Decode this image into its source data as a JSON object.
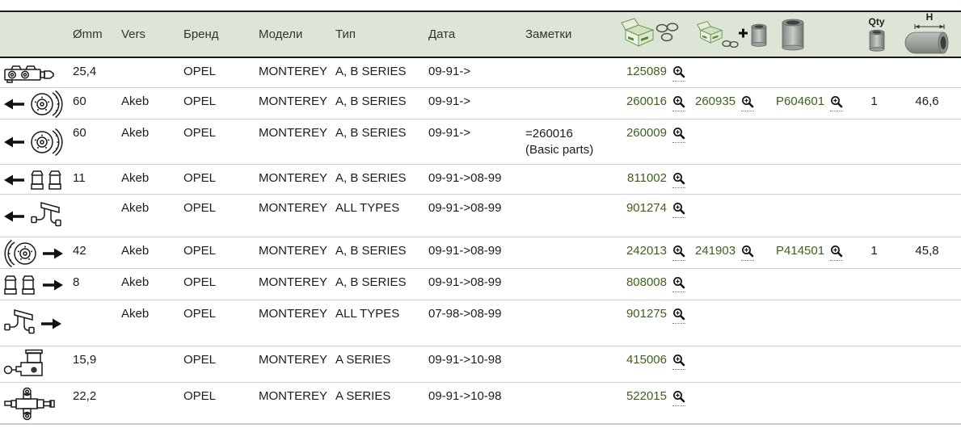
{
  "colors": {
    "header_bg": "#dde6d6",
    "header_border": "#1a1a1a",
    "row_separator": "#cdcdcd",
    "bottom_border": "#c9cad6",
    "part_link_green": "#3e611c",
    "body_text": "#1c1c1c"
  },
  "table": {
    "columns": [
      {
        "key": "icon",
        "label": "",
        "icon": null
      },
      {
        "key": "d",
        "label": "Ømm",
        "icon": null
      },
      {
        "key": "vers",
        "label": "Vers",
        "icon": null
      },
      {
        "key": "brand",
        "label": "Бренд",
        "icon": null
      },
      {
        "key": "model",
        "label": "Модели",
        "icon": null
      },
      {
        "key": "type",
        "label": "Тип",
        "icon": null
      },
      {
        "key": "date",
        "label": "Дата",
        "icon": null
      },
      {
        "key": "notes",
        "label": "Заметки",
        "icon": null
      },
      {
        "key": "p1",
        "label": "",
        "icon": "kit-rings"
      },
      {
        "key": "p2",
        "label": "",
        "icon": "kit-rings-piston"
      },
      {
        "key": "p3",
        "label": "",
        "icon": "piston"
      },
      {
        "key": "qty",
        "label": "Qty",
        "icon": "qty-piston"
      },
      {
        "key": "h",
        "label": "H",
        "icon": "h-piston"
      }
    ],
    "rows": [
      {
        "icon": "master-cylinder",
        "arrow": null,
        "d": "25,4",
        "vers": "",
        "brand": "OPEL",
        "model": "MONTEREY",
        "type": "A, B SERIES",
        "date": "09-91->",
        "notes": "",
        "p1": "125089",
        "p2": "",
        "p3": "",
        "qty": "",
        "h": ""
      },
      {
        "icon": "brake-disc",
        "arrow": "left",
        "d": "60",
        "vers": "Akeb",
        "brand": "OPEL",
        "model": "MONTEREY",
        "type": "A, B SERIES",
        "date": "09-91->",
        "notes": "",
        "p1": "260016",
        "p2": "260935",
        "p3": "P604601",
        "qty": "1",
        "h": "46,6"
      },
      {
        "icon": "brake-disc",
        "arrow": "left",
        "d": "60",
        "vers": "Akeb",
        "brand": "OPEL",
        "model": "MONTEREY",
        "type": "A, B SERIES",
        "date": "09-91->",
        "notes": "=260016 (Basic parts)",
        "p1": "260009",
        "p2": "",
        "p3": "",
        "qty": "",
        "h": ""
      },
      {
        "icon": "wheel-cylinder-cups",
        "arrow": "left",
        "d": "11",
        "vers": "Akeb",
        "brand": "OPEL",
        "model": "MONTEREY",
        "type": "A, B SERIES",
        "date": "09-91->08-99",
        "notes": "",
        "p1": "811002",
        "p2": "",
        "p3": "",
        "qty": "",
        "h": ""
      },
      {
        "icon": "brake-hose",
        "arrow": "left",
        "d": "",
        "vers": "Akeb",
        "brand": "OPEL",
        "model": "MONTEREY",
        "type": "ALL TYPES",
        "date": "09-91->08-99",
        "notes": "",
        "p1": "901274",
        "p2": "",
        "p3": "",
        "qty": "",
        "h": ""
      },
      {
        "icon": "brake-disc-caliper",
        "arrow": "right",
        "d": "42",
        "vers": "Akeb",
        "brand": "OPEL",
        "model": "MONTEREY",
        "type": "A, B SERIES",
        "date": "09-91->08-99",
        "notes": "",
        "p1": "242013",
        "p2": "241903",
        "p3": "P414501",
        "qty": "1",
        "h": "45,8"
      },
      {
        "icon": "wheel-cylinder-cups",
        "arrow": "right",
        "d": "8",
        "vers": "Akeb",
        "brand": "OPEL",
        "model": "MONTEREY",
        "type": "A, B SERIES",
        "date": "09-91->08-99",
        "notes": "",
        "p1": "808008",
        "p2": "",
        "p3": "",
        "qty": "",
        "h": ""
      },
      {
        "icon": "brake-hose",
        "arrow": "right",
        "d": "",
        "vers": "Akeb",
        "brand": "OPEL",
        "model": "MONTEREY",
        "type": "ALL TYPES",
        "date": "07-98->08-99",
        "notes": "",
        "p1": "901275",
        "p2": "",
        "p3": "",
        "qty": "",
        "h": ""
      },
      {
        "icon": "clutch-master-cylinder",
        "arrow": null,
        "d": "15,9",
        "vers": "",
        "brand": "OPEL",
        "model": "MONTEREY",
        "type": "A SERIES",
        "date": "09-91->10-98",
        "notes": "",
        "p1": "415006",
        "p2": "",
        "p3": "",
        "qty": "",
        "h": ""
      },
      {
        "icon": "regulator-valve",
        "arrow": null,
        "d": "22,2",
        "vers": "",
        "brand": "OPEL",
        "model": "MONTEREY",
        "type": "A SERIES",
        "date": "09-91->10-98",
        "notes": "",
        "p1": "522015",
        "p2": "",
        "p3": "",
        "qty": "",
        "h": ""
      }
    ]
  },
  "icons": {
    "zoom": "magnifier-icon",
    "left_arrow": "left-arrow-icon",
    "right_arrow": "right-arrow-icon",
    "header_part": "kit-rings-icon",
    "header_part_plus": "kit-rings-piston-icon",
    "header_piston": "piston-icon",
    "header_qty": "qty-piston-icon",
    "header_h": "h-piston-icon"
  }
}
